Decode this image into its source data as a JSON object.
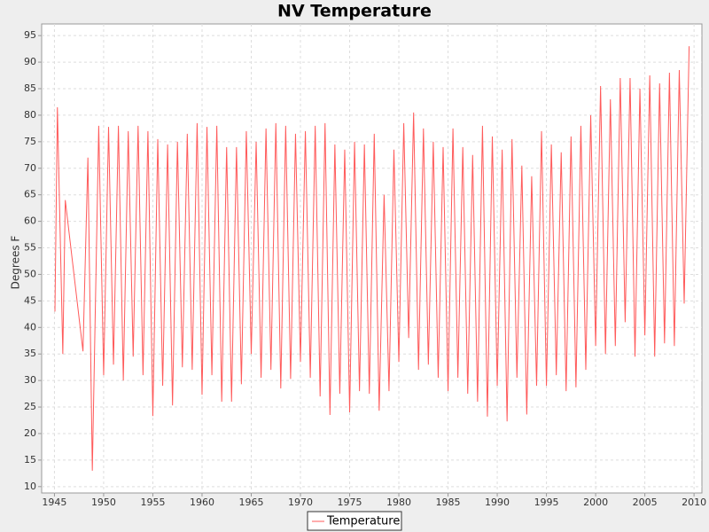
{
  "chart_data": {
    "type": "line",
    "title": "NV Temperature",
    "y_label": "Degrees F",
    "xlim": [
      1943.7,
      2010.8
    ],
    "ylim": [
      8.8,
      97.2
    ],
    "xticks": [
      1945,
      1950,
      1955,
      1960,
      1965,
      1970,
      1975,
      1980,
      1985,
      1990,
      1995,
      2000,
      2005,
      2010
    ],
    "yticks": [
      10,
      15,
      20,
      25,
      30,
      35,
      40,
      45,
      50,
      55,
      60,
      65,
      70,
      75,
      80,
      85,
      90,
      95
    ],
    "grid": true,
    "legend": "bottom",
    "x": [
      1945.05,
      1945.3,
      1945.85,
      1946.1,
      1947.9,
      1948.4,
      1948.85,
      1949.5,
      1950.0,
      1950.5,
      1951.0,
      1951.5,
      1952.0,
      1952.5,
      1953.0,
      1953.5,
      1954.0,
      1954.5,
      1955.0,
      1955.5,
      1956.0,
      1956.5,
      1957.0,
      1957.5,
      1958.0,
      1958.5,
      1959.0,
      1959.5,
      1960.0,
      1960.5,
      1961.0,
      1961.5,
      1962.0,
      1962.5,
      1963.0,
      1963.5,
      1964.0,
      1964.5,
      1965.0,
      1965.5,
      1966.0,
      1966.5,
      1967.0,
      1967.5,
      1968.0,
      1968.5,
      1969.0,
      1969.5,
      1970.0,
      1970.5,
      1971.0,
      1971.5,
      1972.0,
      1972.5,
      1973.0,
      1973.5,
      1974.0,
      1974.5,
      1975.0,
      1975.5,
      1976.0,
      1976.5,
      1977.0,
      1977.5,
      1978.0,
      1978.5,
      1979.0,
      1979.5,
      1980.0,
      1980.5,
      1981.0,
      1981.5,
      1982.0,
      1982.5,
      1983.0,
      1983.5,
      1984.0,
      1984.5,
      1985.0,
      1985.5,
      1986.0,
      1986.5,
      1987.0,
      1987.5,
      1988.0,
      1988.5,
      1989.0,
      1989.5,
      1990.0,
      1990.5,
      1991.0,
      1991.5,
      1992.0,
      1992.5,
      1993.0,
      1993.5,
      1994.0,
      1994.5,
      1995.0,
      1995.5,
      1996.0,
      1996.5,
      1997.0,
      1997.5,
      1998.0,
      1998.5,
      1999.0,
      1999.5,
      2000.0,
      2000.5,
      2001.0,
      2001.5,
      2002.0,
      2002.5,
      2003.0,
      2003.5,
      2004.0,
      2004.5,
      2005.0,
      2005.5,
      2006.0,
      2006.5,
      2007.0,
      2007.5,
      2008.0,
      2008.5,
      2009.0,
      2009.5
    ],
    "series": [
      {
        "name": "Temperature",
        "color": "#ff5a5a",
        "values": [
          43,
          81.5,
          35,
          64,
          35.5,
          72,
          13,
          78,
          31,
          77.8,
          33,
          78,
          30,
          77,
          34.5,
          78,
          31,
          77,
          23.3,
          75.5,
          29,
          74.5,
          25.3,
          75,
          32.5,
          76.5,
          32,
          78.5,
          27.3,
          77.8,
          31,
          78,
          26,
          74,
          26,
          74,
          29.3,
          77,
          35,
          75,
          30.5,
          77.5,
          32,
          78.5,
          28.5,
          78,
          30.3,
          76.5,
          33.5,
          77,
          30.5,
          78,
          27,
          78.5,
          23.5,
          74.5,
          27.5,
          73.5,
          24,
          75,
          28,
          74.5,
          27.5,
          76.5,
          24.3,
          65,
          28,
          73.5,
          33.5,
          78.5,
          38,
          80.5,
          32,
          77.5,
          33,
          75,
          30.5,
          74,
          28,
          77.5,
          30.5,
          74,
          27.5,
          72.5,
          26,
          78,
          23.2,
          76,
          29,
          73.5,
          22.3,
          75.5,
          30.5,
          70.5,
          23.6,
          68.5,
          29,
          77,
          29,
          74.5,
          31,
          73,
          28,
          76,
          28.7,
          78,
          32,
          80,
          36.5,
          85.5,
          35,
          83,
          36.5,
          87,
          41,
          87,
          34.5,
          85,
          38.5,
          87.5,
          34.5,
          86,
          37,
          88,
          36.5,
          88.5,
          44.5,
          93
        ]
      }
    ]
  }
}
